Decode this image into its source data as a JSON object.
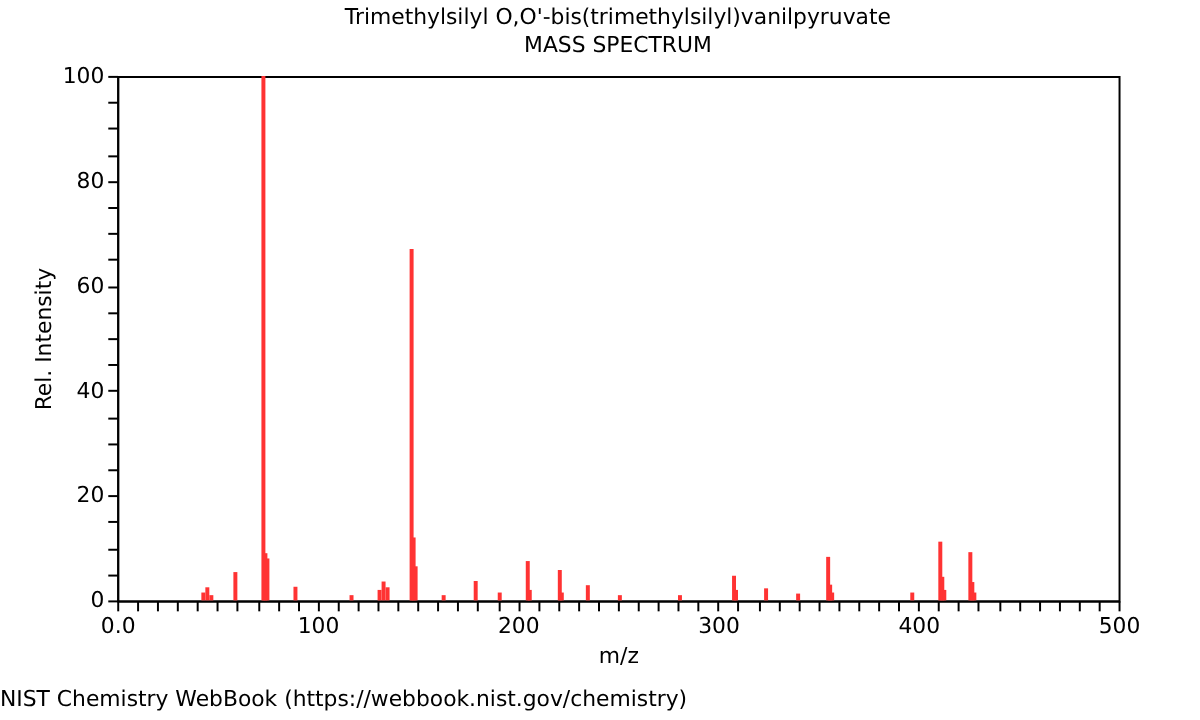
{
  "chart_data": {
    "type": "bar",
    "title": "Trimethylsilyl O,O'-bis(trimethylsilyl)vanilpyruvate",
    "subtitle": "MASS SPECTRUM",
    "xlabel": "m/z",
    "ylabel": "Rel. Intensity",
    "x": [
      43,
      45,
      47,
      59,
      73,
      74,
      75,
      89,
      117,
      131,
      133,
      135,
      147,
      148,
      149,
      163,
      179,
      191,
      205,
      206,
      221,
      222,
      235,
      251,
      281,
      308,
      309,
      324,
      340,
      355,
      356,
      357,
      397,
      411,
      412,
      413,
      426,
      427,
      428
    ],
    "values": [
      1.5,
      2.5,
      1,
      5.4,
      100,
      9,
      8,
      2.6,
      1,
      2,
      3.6,
      2.5,
      67,
      12,
      6.5,
      1,
      3.7,
      1.5,
      7.5,
      2,
      5.8,
      1.5,
      2.9,
      1,
      1,
      4.7,
      2,
      2.3,
      1.3,
      8.3,
      3,
      1.5,
      1.5,
      11.2,
      4.5,
      2,
      9.2,
      3.5,
      1.5
    ],
    "color": "#ff3333",
    "xlim": [
      0,
      500
    ],
    "ylim": [
      0,
      100
    ],
    "xticks": [
      {
        "value": 0,
        "label": "0.0"
      },
      {
        "value": 10,
        "label": null
      },
      {
        "value": 20,
        "label": null
      },
      {
        "value": 30,
        "label": null
      },
      {
        "value": 40,
        "label": null
      },
      {
        "value": 50,
        "label": null
      },
      {
        "value": 60,
        "label": null
      },
      {
        "value": 70,
        "label": null
      },
      {
        "value": 80,
        "label": null
      },
      {
        "value": 90,
        "label": null
      },
      100,
      {
        "value": 110,
        "label": null
      },
      {
        "value": 120,
        "label": null
      },
      {
        "value": 130,
        "label": null
      },
      {
        "value": 140,
        "label": null
      },
      {
        "value": 150,
        "label": null
      },
      {
        "value": 160,
        "label": null
      },
      {
        "value": 170,
        "label": null
      },
      {
        "value": 180,
        "label": null
      },
      {
        "value": 190,
        "label": null
      },
      200,
      {
        "value": 210,
        "label": null
      },
      {
        "value": 220,
        "label": null
      },
      {
        "value": 230,
        "label": null
      },
      {
        "value": 240,
        "label": null
      },
      {
        "value": 250,
        "label": null
      },
      {
        "value": 260,
        "label": null
      },
      {
        "value": 270,
        "label": null
      },
      {
        "value": 280,
        "label": null
      },
      {
        "value": 290,
        "label": null
      },
      300,
      {
        "value": 310,
        "label": null
      },
      {
        "value": 320,
        "label": null
      },
      {
        "value": 330,
        "label": null
      },
      {
        "value": 340,
        "label": null
      },
      {
        "value": 350,
        "label": null
      },
      {
        "value": 360,
        "label": null
      },
      {
        "value": 370,
        "label": null
      },
      {
        "value": 380,
        "label": null
      },
      {
        "value": 390,
        "label": null
      },
      400,
      {
        "value": 410,
        "label": null
      },
      {
        "value": 420,
        "label": null
      },
      {
        "value": 430,
        "label": null
      },
      {
        "value": 440,
        "label": null
      },
      {
        "value": 450,
        "label": null
      },
      {
        "value": 460,
        "label": null
      },
      {
        "value": 470,
        "label": null
      },
      {
        "value": 480,
        "label": null
      },
      {
        "value": 490,
        "label": null
      },
      500
    ],
    "yticks": [
      0,
      {
        "value": 5,
        "label": null
      },
      {
        "value": 10,
        "label": null
      },
      {
        "value": 15,
        "label": null
      },
      20,
      {
        "value": 25,
        "label": null
      },
      {
        "value": 30,
        "label": null
      },
      {
        "value": 35,
        "label": null
      },
      40,
      {
        "value": 45,
        "label": null
      },
      {
        "value": 50,
        "label": null
      },
      {
        "value": 55,
        "label": null
      },
      60,
      {
        "value": 65,
        "label": null
      },
      {
        "value": 70,
        "label": null
      },
      {
        "value": 75,
        "label": null
      },
      80,
      {
        "value": 85,
        "label": null
      },
      {
        "value": 90,
        "label": null
      },
      {
        "value": 95,
        "label": null
      },
      100
    ],
    "grid": false,
    "annotations": [
      "NIST Chemistry WebBook (https://webbook.nist.gov/chemistry)"
    ]
  }
}
